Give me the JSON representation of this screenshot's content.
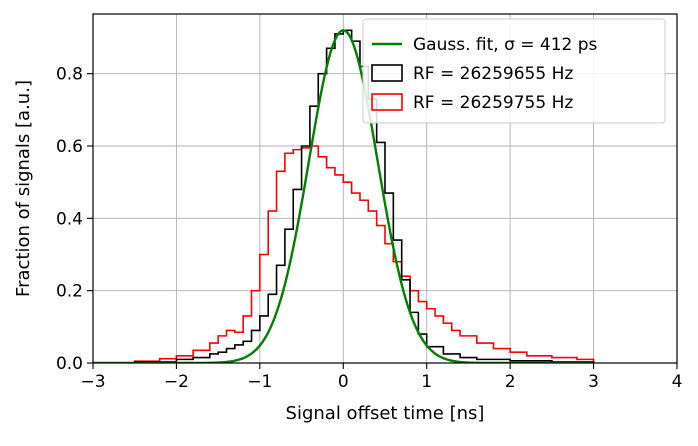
{
  "chart_data": {
    "type": "line",
    "xlabel": "Signal offset time [ns]",
    "ylabel": "Fraction of signals [a.u.]",
    "xlim": [
      -3,
      4
    ],
    "ylim": [
      0,
      0.965
    ],
    "xticks": [
      -3,
      -2,
      -1,
      0,
      1,
      2,
      3,
      4
    ],
    "xtick_labels": [
      "−3",
      "−2",
      "−1",
      "0",
      "1",
      "2",
      "3",
      "4"
    ],
    "yticks": [
      0.0,
      0.2,
      0.4,
      0.6,
      0.8
    ],
    "ytick_labels": [
      "0.0",
      "0.2",
      "0.4",
      "0.6",
      "0.8"
    ],
    "grid": true,
    "legend_position": "top-right",
    "legend": [
      {
        "label": "Gauss. fit, σ = 412 ps",
        "color": "#008000",
        "style": "line"
      },
      {
        "label": "RF = 26259655 Hz",
        "color": "#000000",
        "style": "step"
      },
      {
        "label": "RF = 26259755 Hz",
        "color": "#ff0000",
        "style": "step"
      }
    ],
    "series": [
      {
        "style": "line",
        "color": "#008000",
        "function": "gaussian",
        "amplitude": 0.92,
        "mean": 0.0,
        "sigma": 0.412,
        "x_range": [
          -3,
          3
        ]
      },
      {
        "style": "step",
        "color": "#000000",
        "x": [
          -3.0,
          -2.5,
          -2.0,
          -1.8,
          -1.6,
          -1.5,
          -1.4,
          -1.3,
          -1.2,
          -1.1,
          -1.0,
          -0.9,
          -0.8,
          -0.7,
          -0.6,
          -0.5,
          -0.4,
          -0.3,
          -0.2,
          -0.1,
          0.0,
          0.1,
          0.2,
          0.3,
          0.4,
          0.5,
          0.6,
          0.7,
          0.8,
          0.9,
          1.0,
          1.2,
          1.4,
          1.6,
          2.0,
          2.5,
          3.0
        ],
        "y": [
          0.0,
          0.003,
          0.01,
          0.015,
          0.025,
          0.03,
          0.04,
          0.05,
          0.06,
          0.09,
          0.13,
          0.19,
          0.27,
          0.37,
          0.48,
          0.6,
          0.71,
          0.8,
          0.87,
          0.91,
          0.92,
          0.89,
          0.82,
          0.73,
          0.61,
          0.47,
          0.34,
          0.23,
          0.14,
          0.08,
          0.045,
          0.025,
          0.015,
          0.01,
          0.006,
          0.003,
          0.0
        ]
      },
      {
        "style": "step",
        "color": "#ff0000",
        "x": [
          -3.0,
          -2.5,
          -2.2,
          -2.0,
          -1.8,
          -1.6,
          -1.5,
          -1.4,
          -1.3,
          -1.2,
          -1.1,
          -1.0,
          -0.9,
          -0.8,
          -0.7,
          -0.6,
          -0.5,
          -0.4,
          -0.3,
          -0.2,
          -0.1,
          0.0,
          0.1,
          0.2,
          0.3,
          0.4,
          0.5,
          0.6,
          0.7,
          0.8,
          0.9,
          1.0,
          1.1,
          1.2,
          1.3,
          1.4,
          1.6,
          1.8,
          2.0,
          2.2,
          2.5,
          2.8,
          3.0
        ],
        "y": [
          0.0,
          0.005,
          0.012,
          0.02,
          0.035,
          0.055,
          0.075,
          0.09,
          0.085,
          0.13,
          0.2,
          0.3,
          0.42,
          0.53,
          0.58,
          0.59,
          0.595,
          0.6,
          0.57,
          0.54,
          0.52,
          0.5,
          0.47,
          0.45,
          0.42,
          0.38,
          0.33,
          0.28,
          0.24,
          0.2,
          0.17,
          0.15,
          0.13,
          0.11,
          0.09,
          0.075,
          0.055,
          0.04,
          0.03,
          0.02,
          0.015,
          0.01,
          0.0
        ]
      }
    ]
  }
}
